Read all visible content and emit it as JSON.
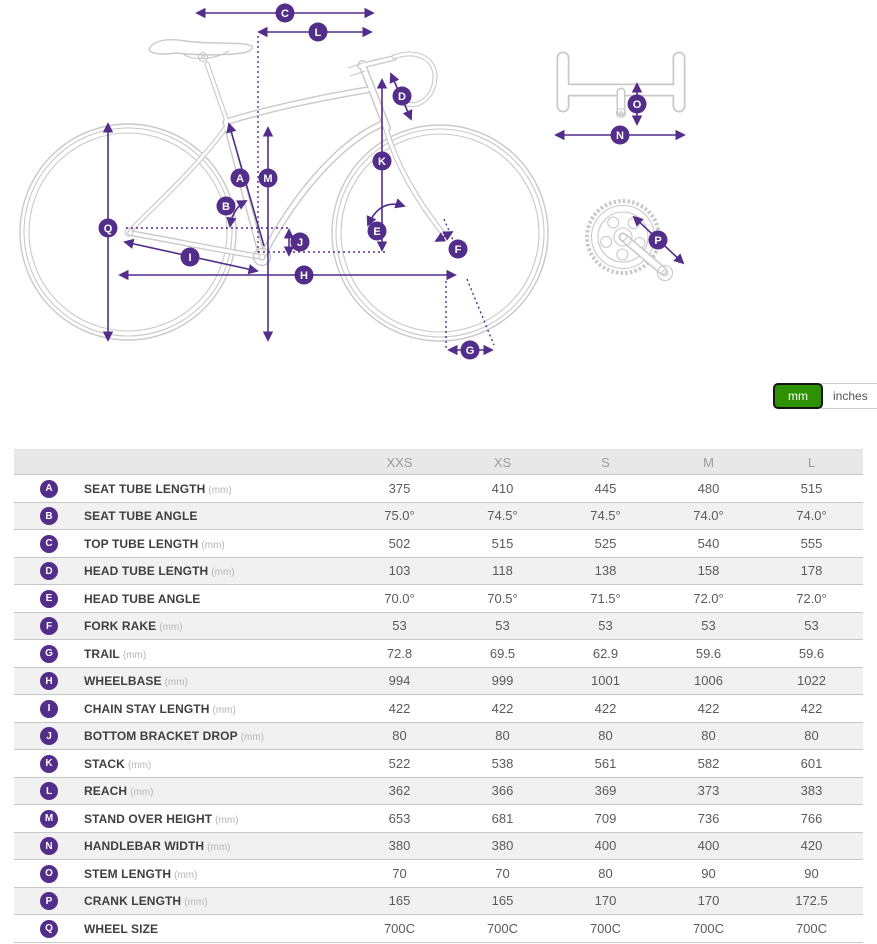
{
  "diagram": {
    "badge_letters": [
      "A",
      "B",
      "C",
      "D",
      "E",
      "F",
      "G",
      "H",
      "I",
      "J",
      "K",
      "L",
      "M",
      "N",
      "O",
      "P",
      "Q"
    ]
  },
  "unit_toggle": {
    "options": [
      {
        "label": "mm",
        "selected": true
      },
      {
        "label": "inches",
        "selected": false
      }
    ]
  },
  "table": {
    "columns": [
      "XXS",
      "XS",
      "S",
      "M",
      "L"
    ],
    "rows": [
      {
        "letter": "A",
        "label": "SEAT TUBE LENGTH",
        "unit": "(mm)",
        "values": [
          "375",
          "410",
          "445",
          "480",
          "515"
        ]
      },
      {
        "letter": "B",
        "label": "SEAT TUBE ANGLE",
        "unit": "",
        "values": [
          "75.0°",
          "74.5°",
          "74.5°",
          "74.0°",
          "74.0°"
        ]
      },
      {
        "letter": "C",
        "label": "TOP TUBE LENGTH",
        "unit": "(mm)",
        "values": [
          "502",
          "515",
          "525",
          "540",
          "555"
        ]
      },
      {
        "letter": "D",
        "label": "HEAD TUBE LENGTH",
        "unit": "(mm)",
        "values": [
          "103",
          "118",
          "138",
          "158",
          "178"
        ]
      },
      {
        "letter": "E",
        "label": "HEAD TUBE ANGLE",
        "unit": "",
        "values": [
          "70.0°",
          "70.5°",
          "71.5°",
          "72.0°",
          "72.0°"
        ]
      },
      {
        "letter": "F",
        "label": "FORK RAKE",
        "unit": "(mm)",
        "values": [
          "53",
          "53",
          "53",
          "53",
          "53"
        ]
      },
      {
        "letter": "G",
        "label": "TRAIL",
        "unit": "(mm)",
        "values": [
          "72.8",
          "69.5",
          "62.9",
          "59.6",
          "59.6"
        ]
      },
      {
        "letter": "H",
        "label": "WHEELBASE",
        "unit": "(mm)",
        "values": [
          "994",
          "999",
          "1001",
          "1006",
          "1022"
        ]
      },
      {
        "letter": "I",
        "label": "CHAIN STAY LENGTH",
        "unit": "(mm)",
        "values": [
          "422",
          "422",
          "422",
          "422",
          "422"
        ]
      },
      {
        "letter": "J",
        "label": "BOTTOM BRACKET DROP",
        "unit": "(mm)",
        "values": [
          "80",
          "80",
          "80",
          "80",
          "80"
        ]
      },
      {
        "letter": "K",
        "label": "STACK",
        "unit": "(mm)",
        "values": [
          "522",
          "538",
          "561",
          "582",
          "601"
        ]
      },
      {
        "letter": "L",
        "label": "REACH",
        "unit": "(mm)",
        "values": [
          "362",
          "366",
          "369",
          "373",
          "383"
        ]
      },
      {
        "letter": "M",
        "label": "STAND OVER HEIGHT",
        "unit": "(mm)",
        "values": [
          "653",
          "681",
          "709",
          "736",
          "766"
        ]
      },
      {
        "letter": "N",
        "label": "HANDLEBAR WIDTH",
        "unit": "(mm)",
        "values": [
          "380",
          "380",
          "400",
          "400",
          "420"
        ]
      },
      {
        "letter": "O",
        "label": "STEM LENGTH",
        "unit": "(mm)",
        "values": [
          "70",
          "70",
          "80",
          "90",
          "90"
        ]
      },
      {
        "letter": "P",
        "label": "CRANK LENGTH",
        "unit": "(mm)",
        "values": [
          "165",
          "165",
          "170",
          "170",
          "172.5"
        ]
      },
      {
        "letter": "Q",
        "label": "WHEEL SIZE",
        "unit": "",
        "values": [
          "700C",
          "700C",
          "700C",
          "700C",
          "700C"
        ]
      }
    ]
  },
  "colors": {
    "accent_purple": "#522d8a",
    "toggle_green": "#2e9100",
    "bike_line_gray": "#c9c9c9"
  }
}
